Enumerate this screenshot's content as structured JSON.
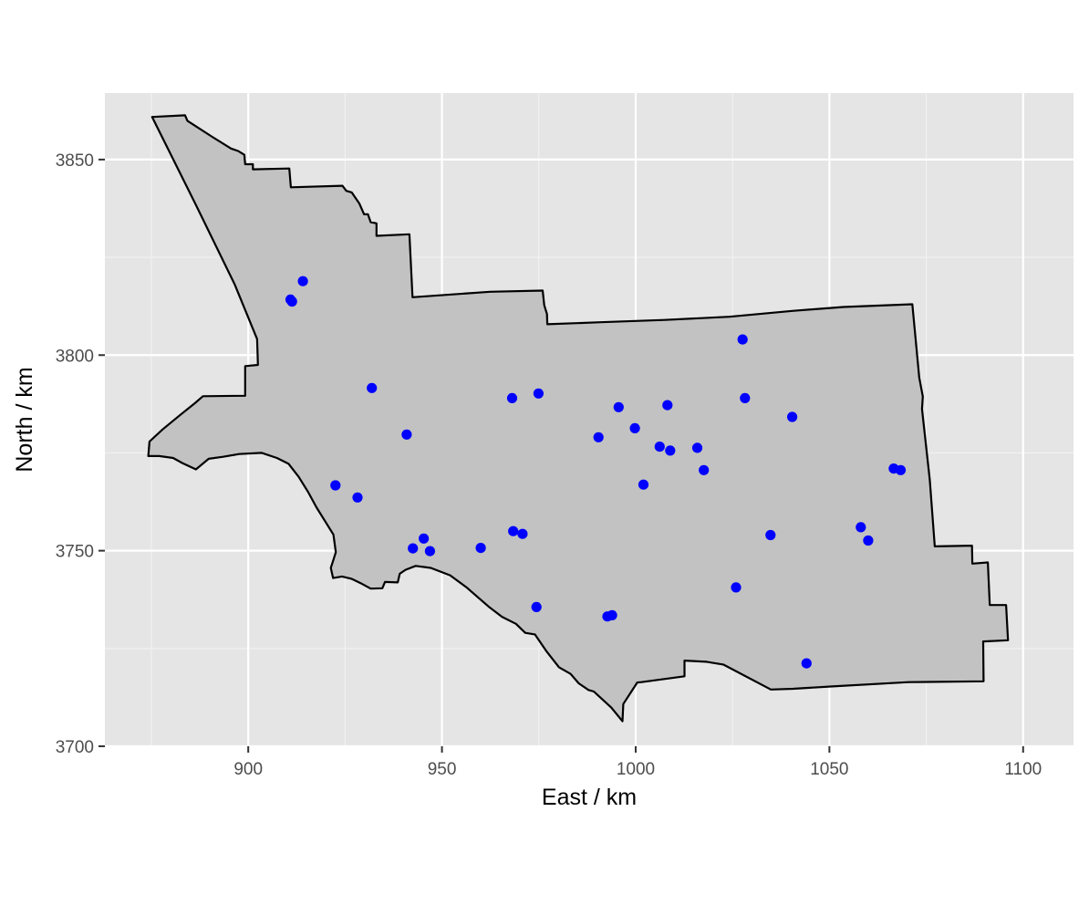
{
  "chart_data": {
    "type": "scatter",
    "title": "",
    "xlabel": "East / km",
    "ylabel": "North / km",
    "xlim": [
      863,
      1113
    ],
    "ylim": [
      3700,
      3867
    ],
    "x_ticks": [
      900,
      950,
      1000,
      1050,
      1100
    ],
    "y_ticks": [
      3700,
      3750,
      3800,
      3850
    ],
    "x_tick_labels": [
      "900",
      "950",
      "1000",
      "1050",
      "1100"
    ],
    "y_tick_labels": [
      "3700",
      "3750",
      "3800",
      "3850"
    ],
    "grid": true,
    "panel_background": "#e5e5e5",
    "region_fill": "#c2c2c2",
    "region_outline": "#000000",
    "point_color": "#0000ff",
    "region_outline_xy": [
      [
        875.2,
        3860.9
      ],
      [
        883.7,
        3861.3
      ],
      [
        884.3,
        3859.9
      ],
      [
        890.7,
        3855.8
      ],
      [
        895.6,
        3852.8
      ],
      [
        897.4,
        3852.2
      ],
      [
        899.0,
        3851.2
      ],
      [
        899.2,
        3848.8
      ],
      [
        901.2,
        3848.8
      ],
      [
        901.2,
        3847.5
      ],
      [
        910.6,
        3847.7
      ],
      [
        911.0,
        3842.9
      ],
      [
        924.3,
        3843.3
      ],
      [
        925.3,
        3842.0
      ],
      [
        926.7,
        3841.6
      ],
      [
        928.7,
        3838.7
      ],
      [
        929.9,
        3836.0
      ],
      [
        930.9,
        3836.0
      ],
      [
        931.6,
        3834.0
      ],
      [
        933.1,
        3833.7
      ],
      [
        933.1,
        3830.5
      ],
      [
        941.6,
        3830.9
      ],
      [
        942.4,
        3814.8
      ],
      [
        962.4,
        3816.2
      ],
      [
        976.0,
        3816.5
      ],
      [
        976.4,
        3812.8
      ],
      [
        977.1,
        3810.5
      ],
      [
        977.2,
        3807.9
      ],
      [
        991.0,
        3808.4
      ],
      [
        1007.5,
        3809.0
      ],
      [
        1024.2,
        3809.8
      ],
      [
        1040.4,
        3811.3
      ],
      [
        1053.6,
        3812.3
      ],
      [
        1066.2,
        3812.8
      ],
      [
        1071.4,
        3813.0
      ],
      [
        1073.2,
        3794.2
      ],
      [
        1074.1,
        3789.4
      ],
      [
        1073.9,
        3786.2
      ],
      [
        1075.9,
        3768.2
      ],
      [
        1077.2,
        3751.1
      ],
      [
        1086.8,
        3751.3
      ],
      [
        1086.9,
        3746.7
      ],
      [
        1090.9,
        3747.0
      ],
      [
        1091.4,
        3736.1
      ],
      [
        1095.6,
        3736.1
      ],
      [
        1096.1,
        3727.1
      ],
      [
        1089.7,
        3726.8
      ],
      [
        1089.8,
        3716.6
      ],
      [
        1070.5,
        3716.4
      ],
      [
        1050.8,
        3715.3
      ],
      [
        1040.6,
        3714.7
      ],
      [
        1034.9,
        3714.5
      ],
      [
        1022.6,
        3720.9
      ],
      [
        1018.3,
        3721.6
      ],
      [
        1012.6,
        3721.9
      ],
      [
        1012.6,
        3717.9
      ],
      [
        1001.5,
        3716.4
      ],
      [
        1000.4,
        3716.3
      ],
      [
        996.8,
        3710.8
      ],
      [
        996.6,
        3706.4
      ],
      [
        993.7,
        3709.9
      ],
      [
        989.2,
        3714.0
      ],
      [
        987.8,
        3714.4
      ],
      [
        985.3,
        3716.1
      ],
      [
        983.2,
        3718.5
      ],
      [
        980.2,
        3720.2
      ],
      [
        976.9,
        3724.4
      ],
      [
        974.0,
        3728.6
      ],
      [
        971.5,
        3729.0
      ],
      [
        969.1,
        3731.3
      ],
      [
        965.5,
        3733.1
      ],
      [
        962.3,
        3735.5
      ],
      [
        959.6,
        3737.8
      ],
      [
        956.5,
        3740.5
      ],
      [
        952.1,
        3743.7
      ],
      [
        947.1,
        3745.6
      ],
      [
        943.2,
        3746.1
      ],
      [
        940.6,
        3745.1
      ],
      [
        939.1,
        3744.1
      ],
      [
        938.6,
        3741.9
      ],
      [
        935.3,
        3742.0
      ],
      [
        934.6,
        3740.4
      ],
      [
        931.6,
        3740.3
      ],
      [
        929.0,
        3741.7
      ],
      [
        926.7,
        3742.8
      ],
      [
        924.2,
        3743.4
      ],
      [
        921.9,
        3743.0
      ],
      [
        921.3,
        3745.6
      ],
      [
        921.9,
        3747.4
      ],
      [
        922.6,
        3749.6
      ],
      [
        922.0,
        3754.1
      ],
      [
        920.1,
        3757.1
      ],
      [
        917.6,
        3761.1
      ],
      [
        915.4,
        3765.1
      ],
      [
        913.0,
        3768.9
      ],
      [
        910.4,
        3772.2
      ],
      [
        907.4,
        3773.7
      ],
      [
        903.5,
        3775.0
      ],
      [
        897.6,
        3774.7
      ],
      [
        893.5,
        3774.0
      ],
      [
        889.8,
        3773.5
      ],
      [
        886.5,
        3770.8
      ],
      [
        883.0,
        3772.4
      ],
      [
        880.6,
        3773.7
      ],
      [
        877.0,
        3774.2
      ],
      [
        874.2,
        3774.2
      ],
      [
        874.5,
        3777.9
      ],
      [
        877.9,
        3781.0
      ],
      [
        882.3,
        3784.6
      ],
      [
        886.2,
        3787.7
      ],
      [
        888.3,
        3789.5
      ],
      [
        899.2,
        3789.6
      ],
      [
        899.2,
        3797.2
      ],
      [
        902.5,
        3797.5
      ],
      [
        902.3,
        3804.1
      ],
      [
        896.5,
        3818.1
      ],
      [
        886.5,
        3838.4
      ],
      [
        875.2,
        3860.9
      ]
    ],
    "points": [
      {
        "x": 910.9,
        "y": 3814.2
      },
      {
        "x": 911.3,
        "y": 3813.7
      },
      {
        "x": 914.1,
        "y": 3818.9
      },
      {
        "x": 931.9,
        "y": 3791.6
      },
      {
        "x": 940.9,
        "y": 3779.7
      },
      {
        "x": 922.5,
        "y": 3766.7
      },
      {
        "x": 928.2,
        "y": 3763.6
      },
      {
        "x": 942.5,
        "y": 3750.6
      },
      {
        "x": 945.3,
        "y": 3753.1
      },
      {
        "x": 946.9,
        "y": 3749.9
      },
      {
        "x": 960.0,
        "y": 3750.7
      },
      {
        "x": 968.1,
        "y": 3789.0
      },
      {
        "x": 974.9,
        "y": 3790.2
      },
      {
        "x": 968.4,
        "y": 3755.0
      },
      {
        "x": 970.8,
        "y": 3754.3
      },
      {
        "x": 974.4,
        "y": 3735.6
      },
      {
        "x": 992.7,
        "y": 3733.2
      },
      {
        "x": 993.9,
        "y": 3733.5
      },
      {
        "x": 990.4,
        "y": 3779.0
      },
      {
        "x": 995.6,
        "y": 3786.7
      },
      {
        "x": 999.8,
        "y": 3781.3
      },
      {
        "x": 1002.0,
        "y": 3766.9
      },
      {
        "x": 1006.2,
        "y": 3776.6
      },
      {
        "x": 1008.2,
        "y": 3787.2
      },
      {
        "x": 1008.9,
        "y": 3775.6
      },
      {
        "x": 1015.9,
        "y": 3776.3
      },
      {
        "x": 1017.6,
        "y": 3770.6
      },
      {
        "x": 1025.9,
        "y": 3740.6
      },
      {
        "x": 1027.6,
        "y": 3804.0
      },
      {
        "x": 1028.2,
        "y": 3789.0
      },
      {
        "x": 1034.8,
        "y": 3754.0
      },
      {
        "x": 1040.4,
        "y": 3784.2
      },
      {
        "x": 1044.1,
        "y": 3721.2
      },
      {
        "x": 1058.1,
        "y": 3756.0
      },
      {
        "x": 1060.0,
        "y": 3752.6
      },
      {
        "x": 1066.6,
        "y": 3771.0
      },
      {
        "x": 1068.4,
        "y": 3770.6
      }
    ]
  }
}
